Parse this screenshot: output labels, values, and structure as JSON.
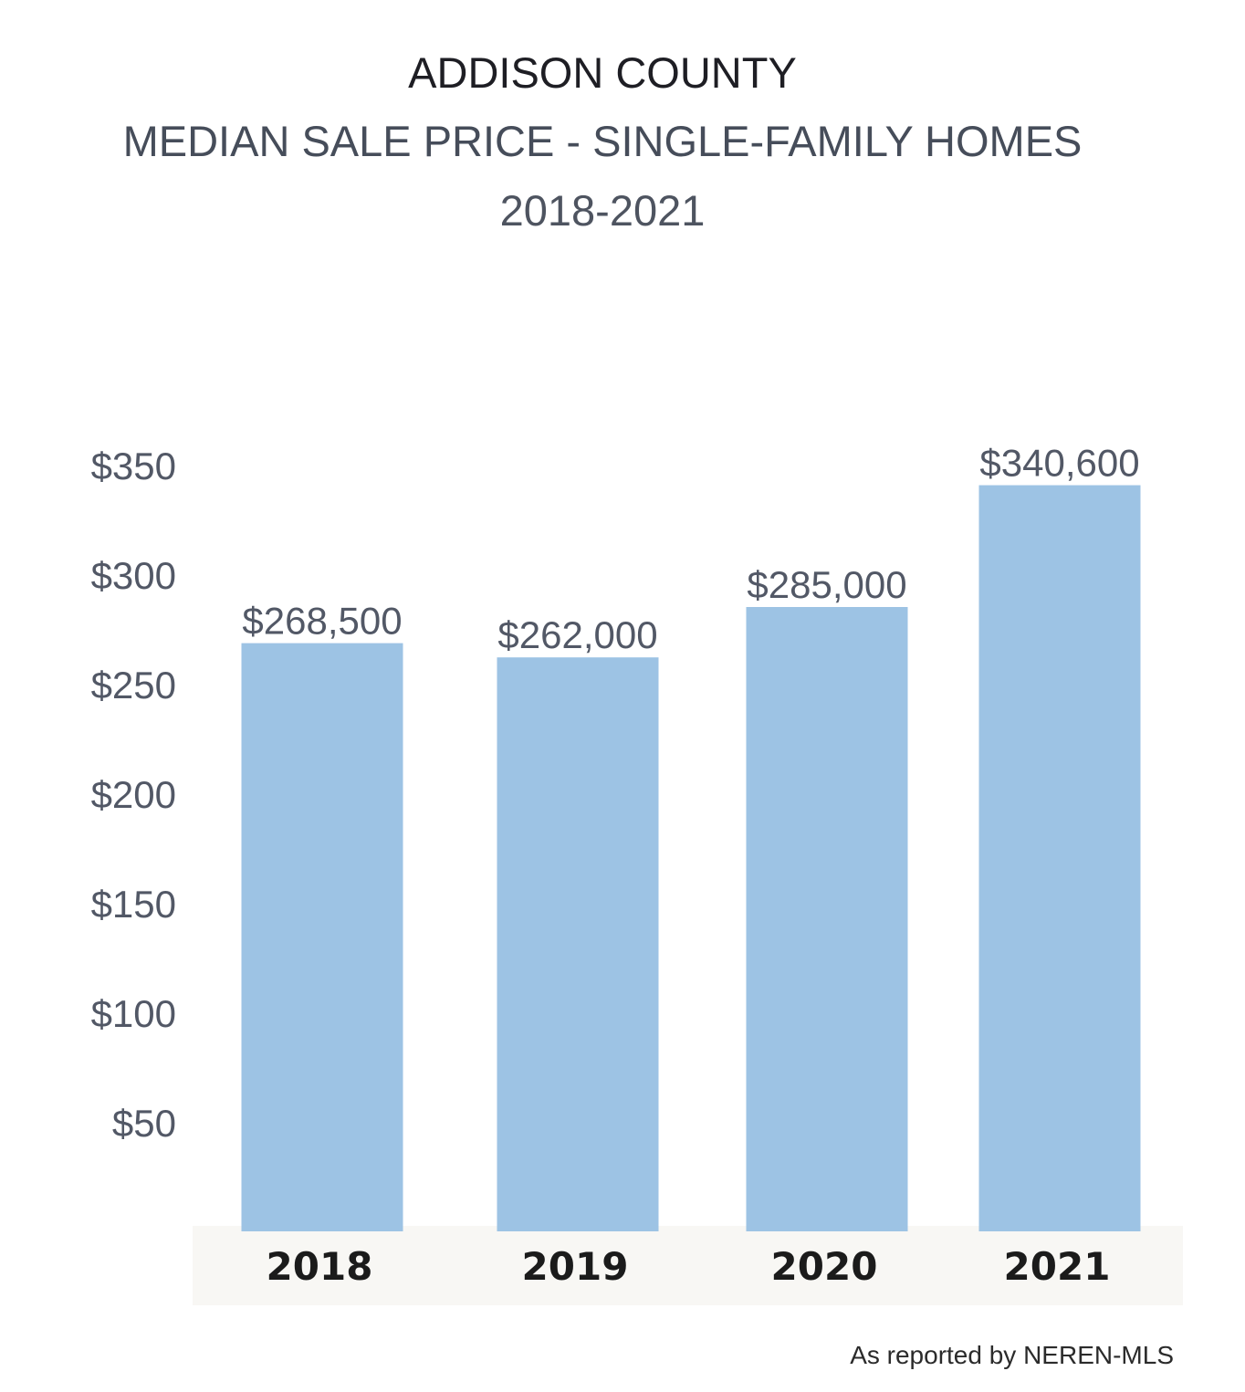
{
  "chart_data": {
    "type": "bar",
    "title": "ADDISON COUNTY",
    "subtitle": "MEDIAN SALE PRICE - SINGLE-FAMILY HOMES",
    "date_range": "2018-2021",
    "categories": [
      "2018",
      "2019",
      "2020",
      "2021"
    ],
    "values": [
      268500,
      262000,
      285000,
      340600
    ],
    "data_labels": [
      "$268,500",
      "$262,000",
      "$285,000",
      "$340,600"
    ],
    "y_ticks": [
      50,
      100,
      150,
      200,
      250,
      300,
      350
    ],
    "y_tick_labels": [
      "$50",
      "$100",
      "$150",
      "$200",
      "$250",
      "$300",
      "$350"
    ],
    "ylim": [
      0,
      350
    ],
    "y_unit_note": "",
    "xlabel": "",
    "ylabel": "",
    "grid": false,
    "legend": "none",
    "colors": {
      "bar": "#9dc3e4",
      "axis_band": "#f8f7f4",
      "tick_text": "#525866",
      "data_label_text": "#525866",
      "category_text": "#1b1b1b"
    }
  },
  "source_note": "As reported by NEREN-MLS"
}
